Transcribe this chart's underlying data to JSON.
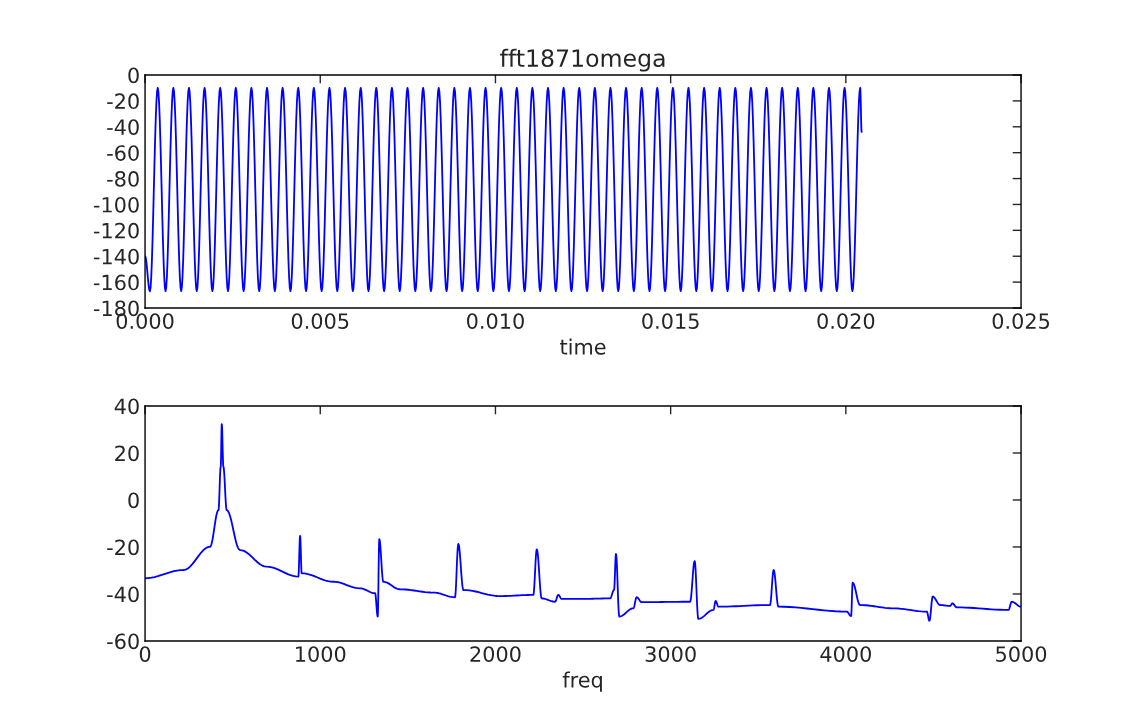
{
  "chart_data": [
    {
      "type": "line",
      "title": "fft1871omega",
      "xlabel": "time",
      "x": [
        0,
        0.000139,
        0.000362,
        0.000585,
        0.000808,
        0.001031,
        0.001253,
        0.001476,
        0.001699,
        0.001922,
        0.002144,
        0.002367,
        0.00259,
        0.002813,
        0.003035,
        0.003258,
        0.003481,
        0.003704,
        0.003926,
        0.004149,
        0.004372,
        0.004595,
        0.004817,
        0.00504,
        0.005263,
        0.005486,
        0.005708,
        0.005931,
        0.006154,
        0.006377,
        0.006599,
        0.006822,
        0.007045,
        0.007268,
        0.00749,
        0.007713,
        0.007936,
        0.008159,
        0.008381,
        0.008604,
        0.008827,
        0.00905,
        0.009272,
        0.009495,
        0.009718,
        0.009941,
        0.010163,
        0.010386,
        0.010609,
        0.010832,
        0.011054,
        0.011277,
        0.0115,
        0.011723,
        0.011945,
        0.012168,
        0.012391,
        0.012614,
        0.012836,
        0.013059,
        0.013282,
        0.013505,
        0.013727,
        0.01395,
        0.014173,
        0.014396,
        0.014618,
        0.014841,
        0.015064,
        0.015287,
        0.015509,
        0.015732,
        0.015955,
        0.016178,
        0.0164,
        0.016623,
        0.016846,
        0.017069,
        0.017291,
        0.017514,
        0.017737,
        0.01796,
        0.018182,
        0.018405,
        0.018628,
        0.018851,
        0.019073,
        0.019296,
        0.019519,
        0.019742,
        0.019964,
        0.020187,
        0.02041,
        0.02045
      ],
      "series": [
        {
          "color": "#0000ff",
          "values": [
            -140,
            -167,
            -10,
            -167,
            -10,
            -167,
            -10,
            -167,
            -10,
            -167,
            -10,
            -167,
            -10,
            -167,
            -10,
            -167,
            -10,
            -167,
            -10,
            -167,
            -10,
            -167,
            -10,
            -167,
            -10,
            -167,
            -10,
            -167,
            -10,
            -167,
            -10,
            -167,
            -10,
            -167,
            -10,
            -167,
            -10,
            -167,
            -10,
            -167,
            -10,
            -167,
            -10,
            -167,
            -10,
            -167,
            -10,
            -167,
            -10,
            -167,
            -10,
            -167,
            -10,
            -167,
            -10,
            -167,
            -10,
            -167,
            -10,
            -167,
            -10,
            -167,
            -10,
            -167,
            -10,
            -167,
            -10,
            -167,
            -10,
            -167,
            -10,
            -167,
            -10,
            -167,
            -10,
            -167,
            -10,
            -167,
            -10,
            -167,
            -10,
            -167,
            -10,
            -167,
            -10,
            -167,
            -10,
            -167,
            -10,
            -167,
            -10,
            -167,
            -10,
            -44
          ]
        }
      ],
      "xlim": [
        0,
        0.025
      ],
      "xticks": [
        {
          "value": 0,
          "label": "0.000"
        },
        {
          "value": 0.005,
          "label": "0.005"
        },
        {
          "value": 0.01,
          "label": "0.010"
        },
        {
          "value": 0.015,
          "label": "0.015"
        },
        {
          "value": 0.02,
          "label": "0.020"
        },
        {
          "value": 0.025,
          "label": "0.025"
        }
      ],
      "ylim": [
        -180,
        0
      ],
      "yticks": [
        -180,
        -160,
        -140,
        -120,
        -100,
        -80,
        -60,
        -40,
        -20,
        0
      ],
      "grid": false,
      "legend": false,
      "marker": "none",
      "line_style": "solid"
    },
    {
      "type": "line",
      "xlabel": "freq",
      "x": [
        0,
        219,
        371,
        419,
        432,
        438,
        447,
        466,
        542,
        694,
        875,
        885,
        894,
        1075,
        1227,
        1313,
        1328,
        1337,
        1360,
        1455,
        1646,
        1769,
        1788,
        1817,
        2026,
        2216,
        2236,
        2264,
        2340,
        2359,
        2378,
        2483,
        2654,
        2677,
        2688,
        2707,
        2787,
        2806,
        2835,
        3111,
        3137,
        3158,
        3244,
        3257,
        3273,
        3567,
        3588,
        3615,
        4005,
        4030,
        4039,
        4081,
        4271,
        4462,
        4477,
        4496,
        4538,
        4595,
        4608,
        4633,
        4928,
        4947,
        5000
      ],
      "series": [
        {
          "color": "#0000ff",
          "values": [
            -33.3,
            -29.8,
            -19.9,
            -4.3,
            14.2,
            32.3,
            14.2,
            -4.3,
            -21.3,
            -28.4,
            -32.6,
            -15.3,
            -31.2,
            -34.8,
            -37.6,
            -39.7,
            -49.6,
            -16.7,
            -34.8,
            -38.0,
            -39.4,
            -41.4,
            -18.7,
            -38.3,
            -40.9,
            -40.4,
            -21.0,
            -41.9,
            -43.3,
            -40.4,
            -42.1,
            -42.1,
            -41.9,
            -38.3,
            -23.0,
            -49.6,
            -46.1,
            -41.4,
            -43.5,
            -43.3,
            -26.0,
            -50.6,
            -46.8,
            -43.0,
            -45.4,
            -44.7,
            -29.8,
            -45.4,
            -47.5,
            -49.4,
            -35.2,
            -44.7,
            -46.1,
            -47.5,
            -51.4,
            -41.1,
            -44.7,
            -45.1,
            -44.0,
            -45.7,
            -46.8,
            -43.3,
            -45.4
          ]
        }
      ],
      "xlim": [
        0,
        5000
      ],
      "xticks": [
        0,
        1000,
        2000,
        3000,
        4000,
        5000
      ],
      "ylim": [
        -60,
        40
      ],
      "yticks": [
        -60,
        -40,
        -20,
        0,
        20,
        40
      ],
      "grid": false,
      "legend": false,
      "marker": "none",
      "line_style": "solid"
    }
  ]
}
